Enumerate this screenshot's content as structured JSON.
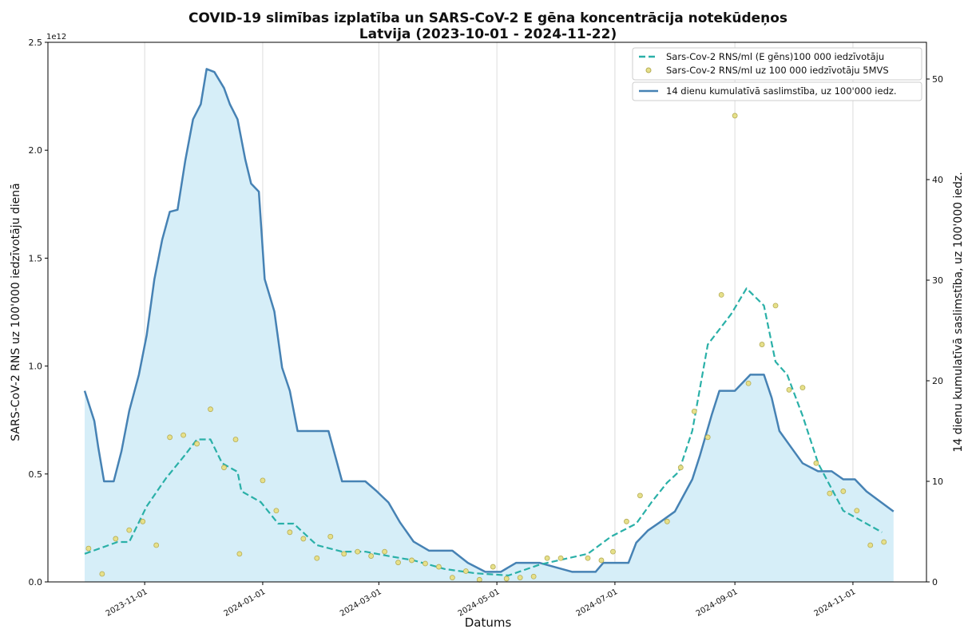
{
  "chart_data": {
    "type": "line",
    "title": "COVID-19 slimības izplatība un SARS-CoV-2 E gēna koncentrācija notekūdeņos",
    "subtitle": "Latvija (2023-10-01 - 2024-11-22)",
    "xlabel": "Datums",
    "ylabel": "SARS-CoV-2 RNS uz 100'000 iedzīvotāju dienā",
    "y2label": "14 dienu kumulatīvā saslimstība, uz 100'000 iedz.",
    "y_offset_label": "1e12",
    "xlim": [
      "2023-09-12",
      "2024-12-09"
    ],
    "xticks": [
      "2023-11-01",
      "2024-01-01",
      "2024-03-01",
      "2024-05-01",
      "2024-07-01",
      "2024-09-01",
      "2024-11-01"
    ],
    "ylim": [
      0,
      2.5
    ],
    "yticks": [
      {
        "value": 0,
        "label": "0.0"
      },
      0.5,
      {
        "value": 1,
        "label": "1.0"
      },
      1.5,
      {
        "value": 2,
        "label": "2.0"
      },
      2.5
    ],
    "y2lim": [
      0,
      53.65
    ],
    "y2ticks": [
      0,
      10,
      20,
      30,
      40,
      50
    ],
    "grid": "x",
    "legend": "upper right",
    "series": [
      {
        "name": "14 dienu kumulatīvā saslimstība, uz 100'000 iedz.",
        "type": "line",
        "axis": "y2",
        "color": "#4682b4",
        "fill": "#d6eef8",
        "x": [
          "2023-10-01",
          "2023-10-06",
          "2023-10-08",
          "2023-10-11",
          "2023-10-16",
          "2023-10-20",
          "2023-10-24",
          "2023-10-29",
          "2023-11-02",
          "2023-11-06",
          "2023-11-10",
          "2023-11-14",
          "2023-11-18",
          "2023-11-22",
          "2023-11-26",
          "2023-11-30",
          "2023-12-03",
          "2023-12-07",
          "2023-12-12",
          "2023-12-15",
          "2023-12-19",
          "2023-12-23",
          "2023-12-26",
          "2023-12-30",
          "2024-01-02",
          "2024-01-07",
          "2024-01-11",
          "2024-01-15",
          "2024-01-19",
          "2024-01-23",
          "2024-01-29",
          "2024-02-04",
          "2024-02-11",
          "2024-02-17",
          "2024-02-23",
          "2024-02-29",
          "2024-03-06",
          "2024-03-12",
          "2024-03-19",
          "2024-03-27",
          "2024-04-08",
          "2024-04-16",
          "2024-04-25",
          "2024-05-03",
          "2024-05-11",
          "2024-05-23",
          "2024-06-09",
          "2024-06-21",
          "2024-06-25",
          "2024-07-08",
          "2024-07-12",
          "2024-07-18",
          "2024-07-24",
          "2024-08-01",
          "2024-08-10",
          "2024-08-14",
          "2024-08-20",
          "2024-08-24",
          "2024-09-01",
          "2024-09-09",
          "2024-09-16",
          "2024-09-20",
          "2024-09-24",
          "2024-09-30",
          "2024-10-06",
          "2024-10-14",
          "2024-10-21",
          "2024-10-27",
          "2024-11-02",
          "2024-11-08",
          "2024-11-22"
        ],
        "values": [
          19.0,
          16.0,
          13.4,
          10.0,
          10.0,
          13.0,
          17.0,
          20.6,
          24.5,
          30.1,
          34.0,
          36.8,
          37.0,
          41.9,
          46.0,
          47.5,
          51.0,
          50.7,
          49.1,
          47.5,
          46.0,
          42.0,
          39.6,
          38.8,
          30.1,
          26.9,
          21.3,
          19.0,
          15.0,
          15.0,
          15.0,
          15.0,
          10.0,
          10.0,
          10.0,
          9.0,
          7.9,
          5.9,
          4.0,
          3.1,
          3.1,
          1.9,
          1.0,
          1.0,
          1.9,
          1.9,
          1.0,
          1.0,
          1.9,
          1.9,
          3.9,
          5.1,
          5.9,
          7.0,
          10.2,
          12.6,
          16.6,
          19.0,
          19.0,
          20.6,
          20.6,
          18.3,
          15.0,
          13.4,
          11.8,
          11.0,
          11.0,
          10.2,
          10.2,
          9.0,
          7.0
        ]
      },
      {
        "name": "Sars-Cov-2 RNS/ml (E gēns)100 000 iedzīvotāju",
        "type": "line",
        "dash": true,
        "axis": "y",
        "color": "#2ab0a8",
        "x": [
          "2023-10-01",
          "2023-10-18",
          "2023-10-24",
          "2023-11-02",
          "2023-11-12",
          "2023-11-22",
          "2023-11-28",
          "2023-12-05",
          "2023-12-11",
          "2023-12-19",
          "2023-12-21",
          "2023-12-31",
          "2024-01-09",
          "2024-01-17",
          "2024-01-29",
          "2024-02-11",
          "2024-02-23",
          "2024-03-06",
          "2024-03-19",
          "2024-04-04",
          "2024-04-20",
          "2024-05-07",
          "2024-05-23",
          "2024-06-17",
          "2024-06-29",
          "2024-07-12",
          "2024-07-20",
          "2024-07-28",
          "2024-08-03",
          "2024-08-10",
          "2024-08-18",
          "2024-08-30",
          "2024-09-07",
          "2024-09-16",
          "2024-09-22",
          "2024-09-28",
          "2024-10-06",
          "2024-10-14",
          "2024-10-27",
          "2024-11-08",
          "2024-11-16"
        ],
        "values": [
          0.13,
          0.185,
          0.185,
          0.35,
          0.48,
          0.59,
          0.66,
          0.66,
          0.55,
          0.51,
          0.42,
          0.37,
          0.27,
          0.27,
          0.17,
          0.14,
          0.14,
          0.12,
          0.1,
          0.06,
          0.04,
          0.03,
          0.08,
          0.13,
          0.21,
          0.27,
          0.37,
          0.46,
          0.51,
          0.7,
          1.1,
          1.24,
          1.36,
          1.28,
          1.02,
          0.96,
          0.77,
          0.55,
          0.33,
          0.27,
          0.23
        ]
      },
      {
        "name": "Sars-Cov-2 RNS/ml uz 100 000 iedzīvotāju 5MVS",
        "type": "scatter",
        "axis": "y",
        "color": "#e6e08a",
        "edgecolor": "#b5ac55",
        "x": [
          "2023-10-03",
          "2023-10-10",
          "2023-10-17",
          "2023-10-24",
          "2023-10-31",
          "2023-11-07",
          "2023-11-14",
          "2023-11-21",
          "2023-11-28",
          "2023-12-05",
          "2023-12-12",
          "2023-12-18",
          "2023-12-20",
          "2024-01-01",
          "2024-01-08",
          "2024-01-15",
          "2024-01-22",
          "2024-01-29",
          "2024-02-05",
          "2024-02-12",
          "2024-02-19",
          "2024-02-26",
          "2024-03-04",
          "2024-03-11",
          "2024-03-18",
          "2024-03-25",
          "2024-04-01",
          "2024-04-08",
          "2024-04-15",
          "2024-04-22",
          "2024-04-29",
          "2024-05-06",
          "2024-05-13",
          "2024-05-20",
          "2024-05-27",
          "2024-06-03",
          "2024-06-17",
          "2024-06-24",
          "2024-06-30",
          "2024-07-07",
          "2024-07-14",
          "2024-07-28",
          "2024-08-04",
          "2024-08-11",
          "2024-08-18",
          "2024-08-25",
          "2024-09-01",
          "2024-09-08",
          "2024-09-15",
          "2024-09-22",
          "2024-09-29",
          "2024-10-06",
          "2024-10-13",
          "2024-10-20",
          "2024-10-27",
          "2024-11-03",
          "2024-11-10",
          "2024-11-17"
        ],
        "values": [
          0.155,
          0.037,
          0.2,
          0.24,
          0.28,
          0.17,
          0.67,
          0.68,
          0.64,
          0.8,
          0.53,
          0.66,
          0.13,
          0.47,
          0.33,
          0.23,
          0.2,
          0.11,
          0.21,
          0.13,
          0.14,
          0.12,
          0.14,
          0.09,
          0.1,
          0.085,
          0.07,
          0.02,
          0.05,
          0.01,
          0.07,
          0.015,
          0.02,
          0.025,
          0.11,
          0.11,
          0.11,
          0.1,
          0.14,
          0.28,
          0.4,
          0.28,
          0.53,
          0.79,
          0.67,
          1.33,
          2.16,
          0.92,
          1.1,
          1.28,
          0.89,
          0.9,
          0.55,
          0.41,
          0.42,
          0.33,
          0.17,
          0.185
        ]
      }
    ]
  }
}
